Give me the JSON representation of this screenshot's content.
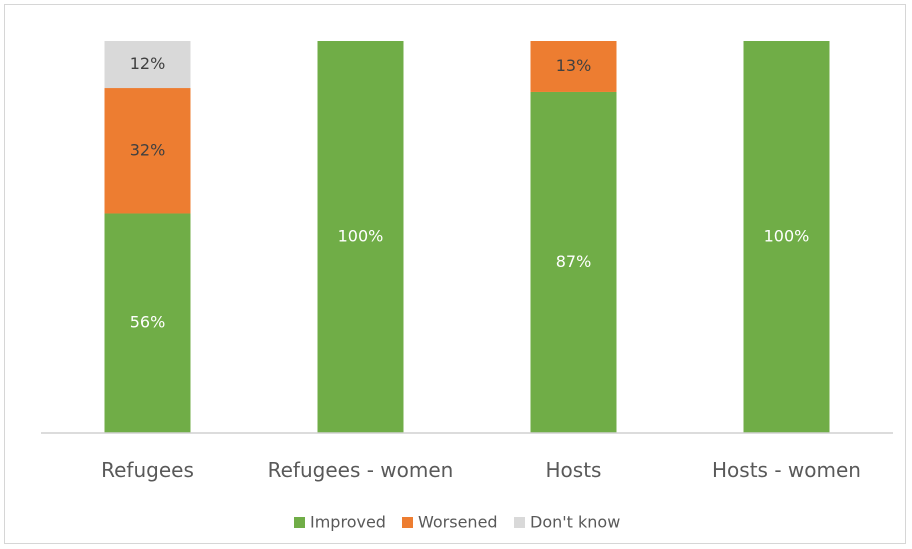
{
  "chart_data": {
    "type": "bar",
    "stacked": true,
    "title": "",
    "xlabel": "",
    "ylabel": "",
    "ylim": [
      0,
      100
    ],
    "grid": false,
    "legend_position": "bottom",
    "categories": [
      "Refugees",
      "Refugees - women",
      "Hosts",
      "Hosts - women"
    ],
    "series": [
      {
        "name": "Improved",
        "color": "#70ad47",
        "label_color": "#ffffff",
        "values": [
          56,
          100,
          87,
          100
        ],
        "labels": [
          "56%",
          "100%",
          "87%",
          "100%"
        ]
      },
      {
        "name": "Worsened",
        "color": "#ed7d31",
        "label_color": "#404040",
        "values": [
          32,
          0,
          13,
          0
        ],
        "labels": [
          "32%",
          "",
          "13%",
          ""
        ]
      },
      {
        "name": "Don't know",
        "color": "#d9d9d9",
        "label_color": "#404040",
        "values": [
          12,
          0,
          0,
          0
        ],
        "labels": [
          "12%",
          "",
          "",
          ""
        ]
      }
    ]
  }
}
